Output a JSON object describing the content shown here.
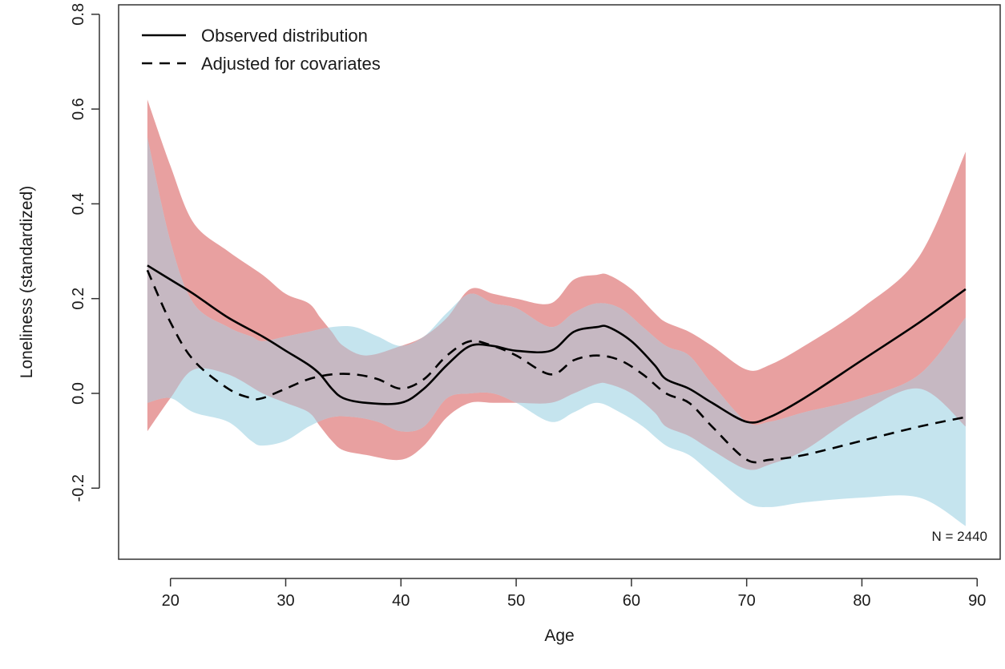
{
  "chart_data": {
    "type": "area",
    "xlabel": "Age",
    "ylabel": "Loneliness (standardized)",
    "xlim": [
      15.5,
      92
    ],
    "ylim": [
      -0.35,
      0.82
    ],
    "xticks": [
      20,
      30,
      40,
      50,
      60,
      70,
      80,
      90
    ],
    "yticks": [
      -0.2,
      0.0,
      0.2,
      0.4,
      0.6,
      0.8
    ],
    "ytick_labels": [
      "-0.2",
      "0.0",
      "0.2",
      "0.4",
      "0.6",
      "0.8"
    ],
    "legend_position": "top-left",
    "annotation": "N = 2440",
    "colors": {
      "observed_band": "#e8a0a0",
      "adjusted_band": "#c5e4ee",
      "overlap_band": "#c6b8c2",
      "line": "#000000"
    },
    "series": [
      {
        "name": "Observed distribution",
        "line_style": "solid",
        "x": [
          18,
          20,
          22,
          25,
          28,
          30,
          32,
          33,
          34,
          35,
          37,
          40,
          42,
          44,
          46,
          48,
          50,
          53,
          55,
          57,
          58,
          60,
          62,
          63,
          65,
          67,
          70,
          72,
          75,
          80,
          85,
          89
        ],
        "y": [
          0.27,
          0.24,
          0.21,
          0.16,
          0.12,
          0.09,
          0.06,
          0.04,
          0.01,
          -0.01,
          -0.02,
          -0.02,
          0.01,
          0.06,
          0.1,
          0.1,
          0.09,
          0.09,
          0.13,
          0.14,
          0.14,
          0.11,
          0.06,
          0.03,
          0.01,
          -0.02,
          -0.06,
          -0.05,
          -0.01,
          0.07,
          0.15,
          0.22
        ],
        "upper": [
          0.62,
          0.48,
          0.36,
          0.3,
          0.25,
          0.21,
          0.19,
          0.16,
          0.13,
          0.1,
          0.08,
          0.1,
          0.12,
          0.16,
          0.22,
          0.21,
          0.2,
          0.19,
          0.24,
          0.25,
          0.25,
          0.22,
          0.17,
          0.15,
          0.13,
          0.1,
          0.05,
          0.06,
          0.1,
          0.18,
          0.29,
          0.51
        ],
        "lower": [
          -0.08,
          -0.01,
          0.05,
          0.04,
          0.0,
          -0.02,
          -0.04,
          -0.07,
          -0.1,
          -0.12,
          -0.13,
          -0.14,
          -0.11,
          -0.05,
          -0.02,
          -0.02,
          -0.02,
          -0.02,
          0.0,
          0.02,
          0.02,
          0.0,
          -0.04,
          -0.07,
          -0.09,
          -0.12,
          -0.16,
          -0.15,
          -0.12,
          -0.04,
          0.01,
          -0.07
        ]
      },
      {
        "name": "Adjusted for covariates",
        "line_style": "dashed",
        "x": [
          18,
          20,
          22,
          25,
          27,
          28,
          30,
          32,
          34,
          36,
          38,
          40,
          42,
          44,
          46,
          48,
          50,
          53,
          55,
          57,
          59,
          61,
          63,
          65,
          67,
          70,
          72,
          75,
          80,
          85,
          89
        ],
        "y": [
          0.26,
          0.15,
          0.07,
          0.01,
          -0.01,
          -0.01,
          0.01,
          0.03,
          0.04,
          0.04,
          0.03,
          0.01,
          0.03,
          0.08,
          0.11,
          0.1,
          0.08,
          0.04,
          0.07,
          0.08,
          0.07,
          0.04,
          0.0,
          -0.02,
          -0.07,
          -0.14,
          -0.14,
          -0.13,
          -0.1,
          -0.07,
          -0.05
        ],
        "upper": [
          0.54,
          0.32,
          0.19,
          0.14,
          0.12,
          0.11,
          0.12,
          0.13,
          0.14,
          0.14,
          0.12,
          0.1,
          0.12,
          0.17,
          0.21,
          0.19,
          0.18,
          0.14,
          0.17,
          0.19,
          0.18,
          0.14,
          0.1,
          0.08,
          0.02,
          -0.06,
          -0.06,
          -0.04,
          -0.01,
          0.04,
          0.16
        ],
        "lower": [
          -0.02,
          -0.01,
          -0.04,
          -0.06,
          -0.1,
          -0.11,
          -0.1,
          -0.07,
          -0.05,
          -0.05,
          -0.06,
          -0.08,
          -0.07,
          -0.01,
          0.0,
          0.0,
          -0.02,
          -0.06,
          -0.04,
          -0.02,
          -0.04,
          -0.07,
          -0.11,
          -0.13,
          -0.17,
          -0.23,
          -0.24,
          -0.23,
          -0.22,
          -0.22,
          -0.28
        ]
      }
    ]
  }
}
